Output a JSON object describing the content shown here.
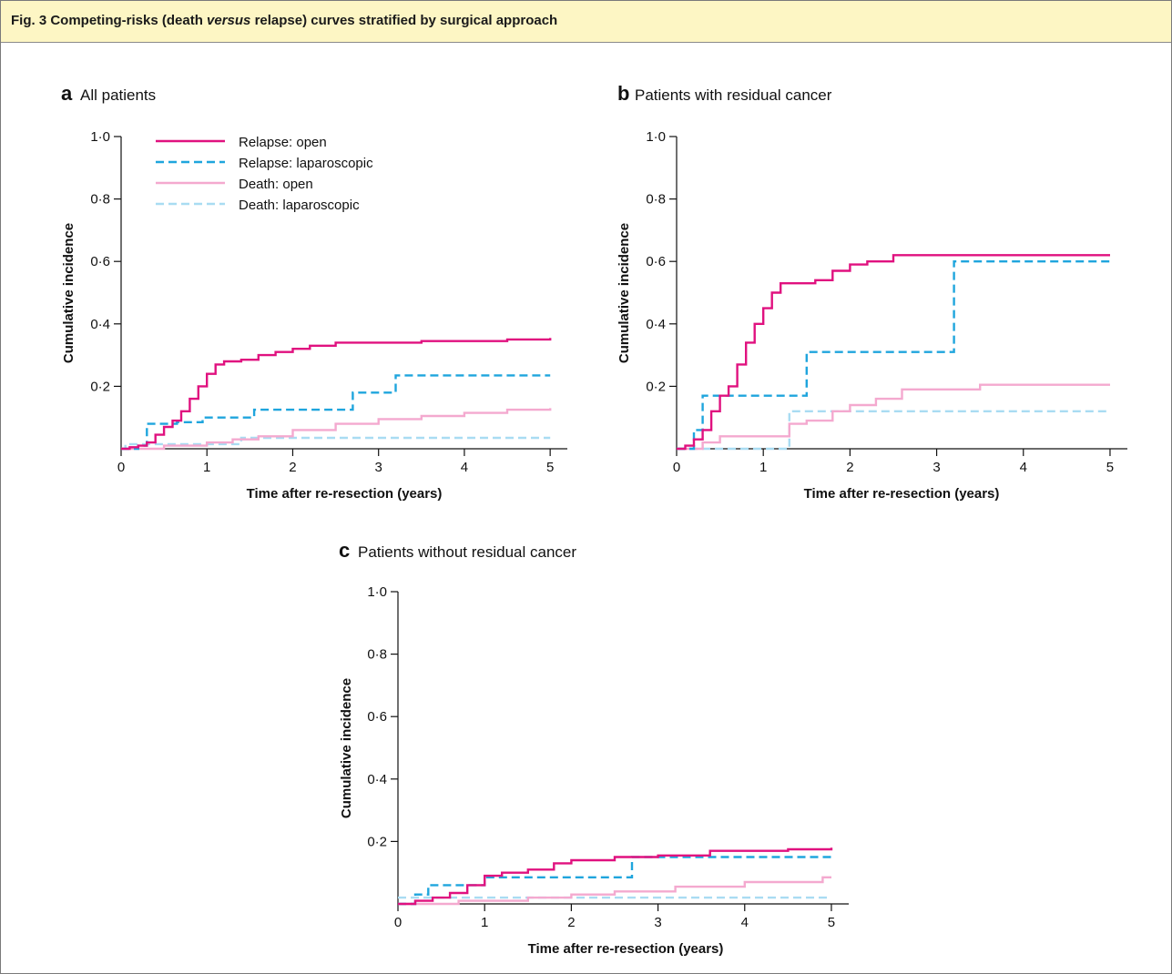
{
  "caption": {
    "prefix": "Fig. 3 Competing-risks (death ",
    "emphasis": "versus",
    "suffix": " relapse) curves stratified by surgical approach"
  },
  "colors": {
    "relapse_open": "#e0117f",
    "relapse_laparoscopic": "#1fa5dd",
    "death_open": "#f4a9cf",
    "death_laparoscopic": "#a9dcf2",
    "caption_background": "#fdf6c4"
  },
  "chart_data": [
    {
      "type": "line",
      "panel_letter": "a",
      "title": "All patients",
      "xlabel": "Time after re-resection (years)",
      "ylabel": "Cumulative incidence",
      "xlim": [
        0,
        5.2
      ],
      "ylim": [
        0,
        1.0
      ],
      "xticks": [
        "0",
        "1",
        "2",
        "3",
        "4",
        "5"
      ],
      "yticks": [
        "0·2",
        "0·4",
        "0·6",
        "0·8",
        "1·0"
      ],
      "step": true,
      "legend": {
        "position": "top-left",
        "entries": [
          "Relapse: open",
          "Relapse: laparoscopic",
          "Death: open",
          "Death: laparoscopic"
        ]
      },
      "series": [
        {
          "name": "Relapse: open",
          "style": "solid",
          "color": "#e0117f",
          "x": [
            0,
            0.1,
            0.2,
            0.3,
            0.4,
            0.5,
            0.6,
            0.7,
            0.8,
            0.9,
            1.0,
            1.1,
            1.2,
            1.4,
            1.6,
            1.8,
            2.0,
            2.2,
            2.5,
            3.0,
            3.5,
            4.0,
            4.5,
            5.0
          ],
          "y": [
            0,
            0.005,
            0.01,
            0.02,
            0.045,
            0.07,
            0.09,
            0.12,
            0.16,
            0.2,
            0.24,
            0.27,
            0.28,
            0.285,
            0.3,
            0.31,
            0.32,
            0.33,
            0.34,
            0.34,
            0.345,
            0.345,
            0.35,
            0.355
          ]
        },
        {
          "name": "Relapse: laparoscopic",
          "style": "dashed",
          "color": "#1fa5dd",
          "x": [
            0,
            0.2,
            0.3,
            0.65,
            0.95,
            1.3,
            1.55,
            2.7,
            3.2,
            5.0
          ],
          "y": [
            0,
            0.01,
            0.08,
            0.085,
            0.1,
            0.1,
            0.125,
            0.18,
            0.235,
            0.235
          ]
        },
        {
          "name": "Death: open",
          "style": "solid",
          "color": "#f4a9cf",
          "x": [
            0,
            0.5,
            1.0,
            1.3,
            1.6,
            2.0,
            2.5,
            3.0,
            3.5,
            4.0,
            4.5,
            5.0
          ],
          "y": [
            0,
            0.01,
            0.02,
            0.03,
            0.04,
            0.06,
            0.08,
            0.095,
            0.105,
            0.115,
            0.125,
            0.13
          ]
        },
        {
          "name": "Death: laparoscopic",
          "style": "dashed",
          "color": "#a9dcf2",
          "x": [
            0,
            0.05,
            1.4,
            5.0
          ],
          "y": [
            0,
            0.015,
            0.035,
            0.035
          ]
        }
      ]
    },
    {
      "type": "line",
      "panel_letter": "b",
      "title": "Patients with residual cancer",
      "xlabel": "Time after re-resection (years)",
      "ylabel": "Cumulative incidence",
      "xlim": [
        0,
        5.2
      ],
      "ylim": [
        0,
        1.0
      ],
      "xticks": [
        "0",
        "1",
        "2",
        "3",
        "4",
        "5"
      ],
      "yticks": [
        "0·2",
        "0·4",
        "0·6",
        "0·8",
        "1·0"
      ],
      "step": true,
      "series": [
        {
          "name": "Relapse: open",
          "style": "solid",
          "color": "#e0117f",
          "x": [
            0,
            0.1,
            0.2,
            0.3,
            0.4,
            0.5,
            0.6,
            0.7,
            0.8,
            0.9,
            1.0,
            1.1,
            1.2,
            1.3,
            1.4,
            1.6,
            1.8,
            2.0,
            2.2,
            2.5,
            3.0,
            5.0
          ],
          "y": [
            0,
            0.01,
            0.03,
            0.06,
            0.12,
            0.17,
            0.2,
            0.27,
            0.34,
            0.4,
            0.45,
            0.5,
            0.53,
            0.53,
            0.53,
            0.54,
            0.57,
            0.59,
            0.6,
            0.62,
            0.62,
            0.62
          ]
        },
        {
          "name": "Relapse: laparoscopic",
          "style": "dashed",
          "color": "#1fa5dd",
          "x": [
            0,
            0.2,
            0.3,
            1.5,
            3.2,
            5.0
          ],
          "y": [
            0,
            0.06,
            0.17,
            0.31,
            0.6,
            0.6
          ]
        },
        {
          "name": "Death: open",
          "style": "solid",
          "color": "#f4a9cf",
          "x": [
            0,
            0.3,
            0.5,
            1.3,
            1.5,
            1.8,
            2.0,
            2.3,
            2.6,
            3.5,
            5.0
          ],
          "y": [
            0,
            0.02,
            0.04,
            0.08,
            0.09,
            0.12,
            0.14,
            0.16,
            0.19,
            0.205,
            0.205
          ]
        },
        {
          "name": "Death: laparoscopic",
          "style": "dashed",
          "color": "#a9dcf2",
          "x": [
            0,
            1.3,
            5.0
          ],
          "y": [
            0,
            0.12,
            0.12
          ]
        }
      ]
    },
    {
      "type": "line",
      "panel_letter": "c",
      "title": "Patients without residual cancer",
      "xlabel": "Time after re-resection (years)",
      "ylabel": "Cumulative incidence",
      "xlim": [
        0,
        5.2
      ],
      "ylim": [
        0,
        1.0
      ],
      "xticks": [
        "0",
        "1",
        "2",
        "3",
        "4",
        "5"
      ],
      "yticks": [
        "0·2",
        "0·4",
        "0·6",
        "0·8",
        "1·0"
      ],
      "step": true,
      "series": [
        {
          "name": "Relapse: open",
          "style": "solid",
          "color": "#e0117f",
          "x": [
            0,
            0.2,
            0.4,
            0.6,
            0.8,
            1.0,
            1.2,
            1.5,
            1.8,
            2.0,
            2.5,
            3.0,
            3.6,
            4.5,
            5.0
          ],
          "y": [
            0,
            0.01,
            0.02,
            0.035,
            0.06,
            0.09,
            0.1,
            0.11,
            0.13,
            0.14,
            0.15,
            0.155,
            0.17,
            0.175,
            0.18
          ]
        },
        {
          "name": "Relapse: laparoscopic",
          "style": "dashed",
          "color": "#1fa5dd",
          "x": [
            0,
            0.2,
            0.35,
            1.0,
            2.7,
            5.0
          ],
          "y": [
            0,
            0.03,
            0.06,
            0.085,
            0.15,
            0.15
          ]
        },
        {
          "name": "Death: open",
          "style": "solid",
          "color": "#f4a9cf",
          "x": [
            0,
            0.7,
            1.5,
            2.0,
            2.5,
            3.2,
            4.0,
            4.9,
            5.0
          ],
          "y": [
            0,
            0.01,
            0.02,
            0.03,
            0.04,
            0.055,
            0.07,
            0.085,
            0.085
          ]
        },
        {
          "name": "Death: laparoscopic",
          "style": "dashed",
          "color": "#a9dcf2",
          "x": [
            0,
            5.0
          ],
          "y": [
            0.02,
            0.02
          ]
        }
      ]
    }
  ]
}
